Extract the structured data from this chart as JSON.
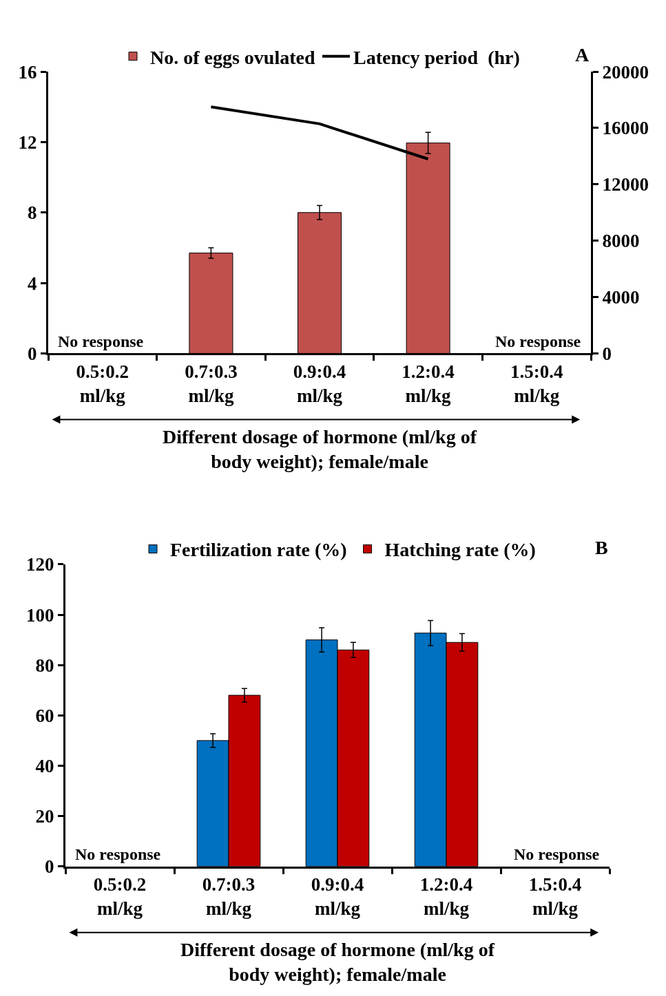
{
  "chart_data": [
    {
      "type": "bar",
      "title": "A",
      "categories": [
        "0.5:0.2\nml/kg",
        "0.7:0.3\nml/kg",
        "0.9:0.4\nml/kg",
        "1.2:0.4\nml/kg",
        "1.5:0.4\nml/kg"
      ],
      "xlabel": "Different dosage of hormone (ml/kg of\nbody weight); female/male",
      "series": [
        {
          "name": "No. of eggs ovulated",
          "color": "#c0504d",
          "values": [
            null,
            5.7,
            8.0,
            11.95,
            null
          ],
          "errors": [
            null,
            0.3,
            0.4,
            0.6,
            null
          ]
        },
        {
          "name": "Latency period  (hr)",
          "type": "line",
          "axis": "y2",
          "color": "#000000",
          "values": [
            null,
            17500,
            16300,
            13800,
            null
          ]
        }
      ],
      "ylim": [
        0,
        16
      ],
      "yticks": [
        0,
        4,
        8,
        12,
        16
      ],
      "y2lim": [
        0,
        20000
      ],
      "y2ticks": [
        0,
        4000,
        8000,
        12000,
        16000,
        20000
      ],
      "annotations": [
        "No response",
        "No response"
      ],
      "legend": "top",
      "grid": false,
      "marker": "none"
    },
    {
      "type": "bar",
      "title": "B",
      "categories": [
        "0.5:0.2\nml/kg",
        "0.7:0.3\nml/kg",
        "0.9:0.4\nml/kg",
        "1.2:0.4\nml/kg",
        "1.5:0.4\nml/kg"
      ],
      "xlabel": "Different dosage of hormone (ml/kg of\nbody weight); female/male",
      "series": [
        {
          "name": "Fertilization rate (%)",
          "color": "#0070c0",
          "values": [
            null,
            50,
            90,
            92.7,
            null
          ],
          "errors": [
            null,
            2.7,
            4.8,
            5,
            null
          ]
        },
        {
          "name": "Hatching rate (%)",
          "color": "#c00000",
          "values": [
            null,
            68,
            86,
            89,
            null
          ],
          "errors": [
            null,
            2.7,
            3,
            3.5,
            null
          ]
        }
      ],
      "ylim": [
        0,
        120
      ],
      "yticks": [
        0,
        20,
        40,
        60,
        80,
        100,
        120
      ],
      "annotations": [
        "No response",
        "No response"
      ],
      "legend": "top",
      "grid": false
    }
  ]
}
